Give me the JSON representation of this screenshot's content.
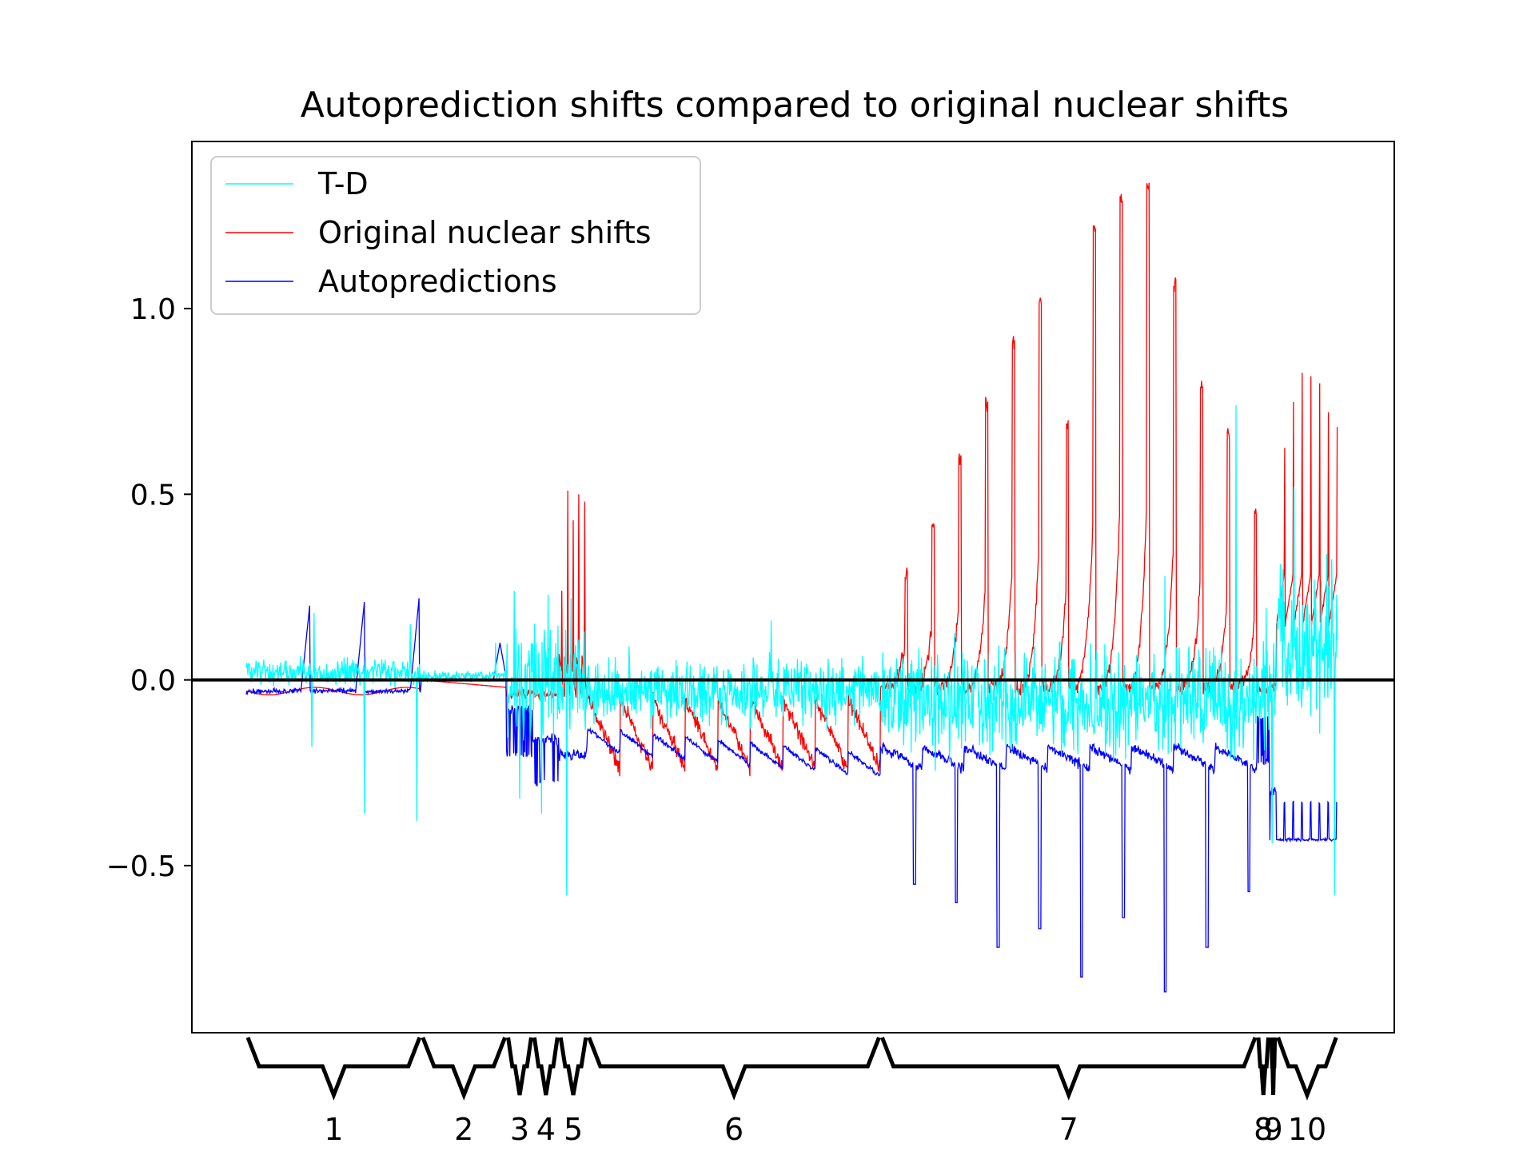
{
  "chart_data": {
    "type": "line",
    "title": "Autoprediction shifts compared to original nuclear shifts",
    "xlabel": "",
    "ylabel": "",
    "xlim": [
      0,
      1000
    ],
    "ylim": [
      -0.95,
      1.45
    ],
    "yticks": [
      {
        "value": -0.5,
        "label": "−0.5"
      },
      {
        "value": 0.0,
        "label": "0.0"
      },
      {
        "value": 0.5,
        "label": "0.5"
      },
      {
        "value": 1.0,
        "label": "1.0"
      }
    ],
    "legend_position": "upper-left",
    "grid": false,
    "zero_line": true,
    "series": [
      {
        "name": "T-D",
        "color": "#00ffff"
      },
      {
        "name": "Original nuclear shifts",
        "color": "#ff0000"
      },
      {
        "name": "Autopredictions",
        "color": "#0000ff"
      }
    ],
    "segments": [
      {
        "label": "1",
        "start": 0,
        "end": 160,
        "mode": "base",
        "td_amp": 0.05,
        "td_outliers": [
          [
            60,
            -0.18
          ],
          [
            62,
            0.18
          ],
          [
            108,
            -0.36
          ],
          [
            156,
            -0.38
          ],
          [
            150,
            0.15
          ]
        ],
        "orig_base": -0.03,
        "auto_base": -0.03,
        "auto_bumps": [
          [
            58,
            0.2
          ],
          [
            108,
            0.21
          ],
          [
            158,
            0.22
          ]
        ]
      },
      {
        "label": "2",
        "start": 160,
        "end": 238,
        "mode": "flat",
        "td_amp": 0.02,
        "td_outliers": [
          [
            228,
            0.1
          ]
        ],
        "orig_base": -0.02,
        "auto_base": 0.0,
        "auto_bumps": [
          [
            232,
            0.1
          ]
        ]
      },
      {
        "label": "3",
        "start": 238,
        "end": 262,
        "mode": "noise",
        "td_amp": 0.2,
        "td_outliers": [
          [
            245,
            0.24
          ],
          [
            250,
            -0.32
          ]
        ],
        "orig_base": -0.04,
        "auto_base": -0.08
      },
      {
        "label": "4",
        "start": 262,
        "end": 286,
        "mode": "noise",
        "td_amp": 0.22,
        "td_outliers": [
          [
            270,
            -0.36
          ],
          [
            276,
            0.23
          ]
        ],
        "orig_base": -0.04,
        "auto_base": -0.16
      },
      {
        "label": "5",
        "start": 286,
        "end": 312,
        "mode": "spikes",
        "td_amp": 0.18,
        "td_outliers": [
          [
            293,
            -0.58
          ],
          [
            297,
            0.22
          ]
        ],
        "orig_spikes": [
          0.29,
          0.56,
          0.48,
          0.55,
          0.53
        ],
        "orig_base": -0.05,
        "auto_base": -0.2
      },
      {
        "label": "6",
        "start": 312,
        "end": 580,
        "mode": "saw",
        "td_amp": 0.12,
        "td_outliers": [
          [
            480,
            0.16
          ],
          [
            350,
            0.09
          ]
        ],
        "orig_base": -0.05,
        "orig_trough": -0.24,
        "auto_start": -0.13,
        "auto_end": -0.2,
        "n_teeth": 9
      },
      {
        "label": "7",
        "start": 580,
        "end": 924,
        "mode": "growth",
        "td_amp": 0.2,
        "td_outliers": [
          [
            905,
            0.74
          ],
          [
            840,
            0.28
          ]
        ],
        "orig_peaks": [
          0.31,
          0.44,
          0.62,
          0.76,
          0.93,
          1.04,
          0.71,
          1.23,
          1.31,
          1.35,
          1.08,
          0.81,
          0.68,
          0.47
        ],
        "auto_base": -0.18,
        "auto_dips": [
          -0.55,
          -0.6,
          -0.72,
          -0.67,
          -0.8,
          -0.64,
          -0.84,
          -0.72,
          -0.57
        ]
      },
      {
        "label": "8",
        "start": 924,
        "end": 936,
        "mode": "noise",
        "td_amp": 0.25,
        "td_outliers": [],
        "orig_base": -0.03,
        "auto_base": -0.1
      },
      {
        "label": "9",
        "start": 936,
        "end": 942,
        "mode": "noise",
        "td_amp": 0.15,
        "td_outliers": [
          [
            938,
            -0.44
          ]
        ],
        "orig_base": -0.02,
        "auto_base": -0.3
      },
      {
        "label": "10",
        "start": 942,
        "end": 998,
        "mode": "sawup",
        "td_amp": 0.3,
        "td_outliers": [
          [
            995,
            -0.58
          ],
          [
            958,
            0.52
          ]
        ],
        "orig_peaks": [
          0.62,
          0.75,
          0.83,
          0.82,
          0.8,
          0.72,
          0.68
        ],
        "auto_base": -0.43,
        "auto_top": -0.33
      }
    ]
  }
}
